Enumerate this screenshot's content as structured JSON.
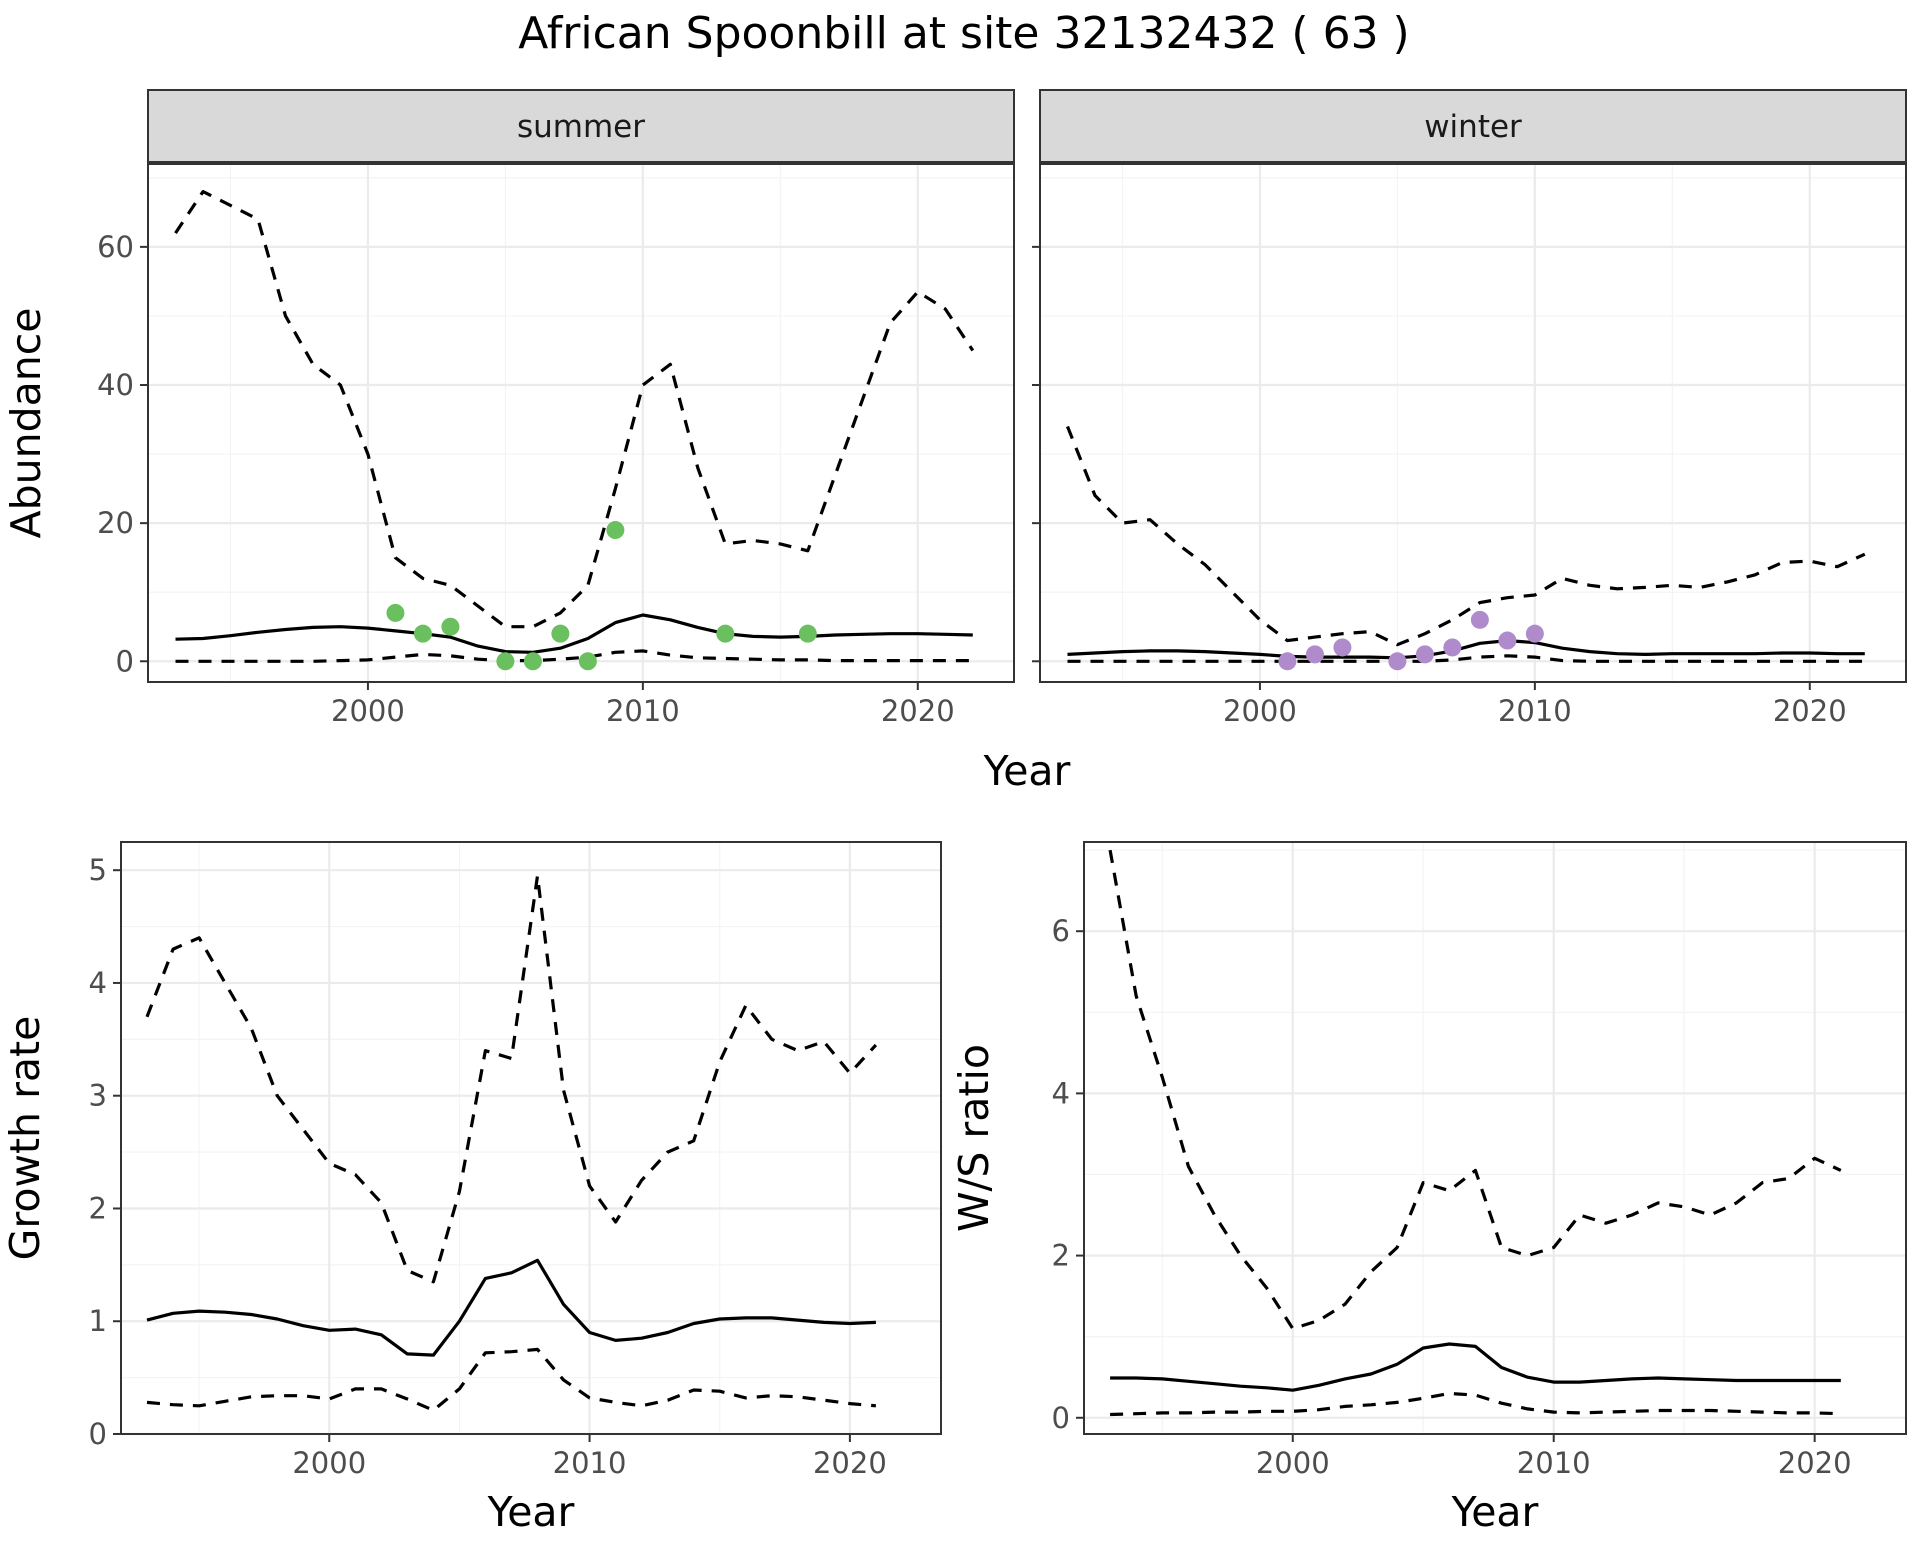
{
  "title": "African Spoonbill at site 32132432 ( 63 )",
  "colors": {
    "summer_points": "#6abf5e",
    "winter_points": "#b08bcc",
    "lines": "#000000"
  },
  "chart_data": [
    {
      "id": "abundance_summer",
      "type": "line",
      "strip": "summer",
      "xlabel": "",
      "ylabel": "Abundance",
      "xlim": [
        1992,
        2023.5
      ],
      "ylim": [
        -3,
        72
      ],
      "xticks": [
        2000,
        2010,
        2020
      ],
      "yticks": [
        0,
        20,
        40,
        60
      ],
      "x": [
        1993,
        1994,
        1995,
        1996,
        1997,
        1998,
        1999,
        2000,
        2001,
        2002,
        2003,
        2004,
        2005,
        2006,
        2007,
        2008,
        2009,
        2010,
        2011,
        2012,
        2013,
        2014,
        2015,
        2016,
        2017,
        2018,
        2019,
        2020,
        2021,
        2022
      ],
      "mean": [
        3.2,
        3.3,
        3.7,
        4.2,
        4.6,
        4.9,
        5.0,
        4.8,
        4.4,
        4.0,
        3.5,
        2.2,
        1.4,
        1.3,
        1.9,
        3.3,
        5.6,
        6.7,
        6.0,
        4.9,
        4.0,
        3.6,
        3.5,
        3.6,
        3.8,
        3.9,
        4.0,
        4.0,
        3.9,
        3.8
      ],
      "upper": [
        62,
        68,
        66,
        64,
        50,
        43,
        40,
        30,
        15,
        12,
        11,
        8,
        5,
        5,
        7,
        11,
        25,
        40,
        43,
        28,
        17,
        17.5,
        17,
        16,
        27,
        38,
        49,
        53.5,
        51,
        45
      ],
      "lower": [
        0,
        0,
        0,
        0,
        0,
        0,
        0.1,
        0.2,
        0.6,
        1.0,
        0.8,
        0.3,
        0.1,
        0.1,
        0.3,
        0.6,
        1.3,
        1.5,
        0.9,
        0.5,
        0.4,
        0.3,
        0.2,
        0.2,
        0.1,
        0.1,
        0.1,
        0.1,
        0.1,
        0.1
      ],
      "points": {
        "x": [
          2001,
          2002,
          2003,
          2005,
          2006,
          2007,
          2008,
          2009,
          2013,
          2016
        ],
        "y": [
          7,
          4,
          5,
          0,
          0,
          4,
          0,
          19,
          4,
          4
        ]
      }
    },
    {
      "id": "abundance_winter",
      "type": "line",
      "strip": "winter",
      "xlabel": "",
      "ylabel": "",
      "xlim": [
        1992,
        2023.5
      ],
      "ylim": [
        -3,
        72
      ],
      "xticks": [
        2000,
        2010,
        2020
      ],
      "yticks": [
        0,
        20,
        40,
        60
      ],
      "x": [
        1993,
        1994,
        1995,
        1996,
        1997,
        1998,
        1999,
        2000,
        2001,
        2002,
        2003,
        2004,
        2005,
        2006,
        2007,
        2008,
        2009,
        2010,
        2011,
        2012,
        2013,
        2014,
        2015,
        2016,
        2017,
        2018,
        2019,
        2020,
        2021,
        2022
      ],
      "mean": [
        1.0,
        1.2,
        1.4,
        1.5,
        1.5,
        1.4,
        1.2,
        1.0,
        0.7,
        0.6,
        0.6,
        0.6,
        0.5,
        0.8,
        1.5,
        2.6,
        3.0,
        2.7,
        1.9,
        1.4,
        1.1,
        1.0,
        1.1,
        1.1,
        1.1,
        1.1,
        1.2,
        1.2,
        1.1,
        1.1
      ],
      "upper": [
        34,
        24,
        20,
        20.5,
        17,
        14,
        10,
        6,
        3,
        3.5,
        4,
        4.3,
        2.4,
        4,
        6,
        8.5,
        9.2,
        9.6,
        12,
        11,
        10.5,
        10.7,
        11,
        10.7,
        11.5,
        12.5,
        14.3,
        14.5,
        13.7,
        15.5
      ],
      "lower": [
        0,
        0,
        0,
        0,
        0,
        0,
        0,
        0,
        0,
        0,
        0,
        0,
        0,
        0,
        0.2,
        0.6,
        0.8,
        0.6,
        0.1,
        0,
        0,
        0,
        0,
        0,
        0,
        0,
        0,
        0,
        0,
        0
      ],
      "points": {
        "x": [
          2001,
          2002,
          2003,
          2005,
          2006,
          2007,
          2008,
          2009,
          2010
        ],
        "y": [
          0,
          1,
          2,
          0,
          1,
          2,
          6,
          3,
          4
        ]
      }
    },
    {
      "id": "growth_rate",
      "type": "line",
      "xlabel": "Year",
      "ylabel": "Growth rate",
      "xlim": [
        1992,
        2023.5
      ],
      "ylim": [
        0,
        5.25
      ],
      "xticks": [
        2000,
        2010,
        2020
      ],
      "yticks": [
        0,
        1,
        2,
        3,
        4,
        5
      ],
      "x": [
        1993,
        1994,
        1995,
        1996,
        1997,
        1998,
        1999,
        2000,
        2001,
        2002,
        2003,
        2004,
        2005,
        2006,
        2007,
        2008,
        2009,
        2010,
        2011,
        2012,
        2013,
        2014,
        2015,
        2016,
        2017,
        2018,
        2019,
        2020,
        2021
      ],
      "mean": [
        1.01,
        1.07,
        1.09,
        1.08,
        1.06,
        1.02,
        0.96,
        0.92,
        0.93,
        0.88,
        0.71,
        0.7,
        1.0,
        1.38,
        1.43,
        1.54,
        1.15,
        0.9,
        0.83,
        0.85,
        0.9,
        0.98,
        1.02,
        1.03,
        1.03,
        1.01,
        0.99,
        0.98,
        0.99
      ],
      "upper": [
        3.7,
        4.3,
        4.4,
        4.0,
        3.6,
        3.0,
        2.7,
        2.4,
        2.3,
        2.05,
        1.45,
        1.35,
        2.15,
        3.4,
        3.33,
        4.95,
        3.05,
        2.2,
        1.88,
        2.25,
        2.5,
        2.6,
        3.3,
        3.8,
        3.5,
        3.4,
        3.48,
        3.2,
        3.45
      ],
      "lower": [
        0.28,
        0.26,
        0.25,
        0.29,
        0.33,
        0.34,
        0.34,
        0.31,
        0.4,
        0.4,
        0.31,
        0.21,
        0.4,
        0.72,
        0.73,
        0.75,
        0.48,
        0.32,
        0.28,
        0.25,
        0.3,
        0.39,
        0.38,
        0.32,
        0.34,
        0.33,
        0.3,
        0.27,
        0.25
      ]
    },
    {
      "id": "ws_ratio",
      "type": "line",
      "xlabel": "Year",
      "ylabel": "W/S ratio",
      "xlim": [
        1992,
        2023.5
      ],
      "ylim": [
        -0.2,
        7.1
      ],
      "xticks": [
        2000,
        2010,
        2020
      ],
      "yticks": [
        0,
        2,
        4,
        6
      ],
      "x": [
        1993,
        1994,
        1995,
        1996,
        1997,
        1998,
        1999,
        2000,
        2001,
        2002,
        2003,
        2004,
        2005,
        2006,
        2007,
        2008,
        2009,
        2010,
        2011,
        2012,
        2013,
        2014,
        2015,
        2016,
        2017,
        2018,
        2019,
        2020,
        2021
      ],
      "mean": [
        0.49,
        0.49,
        0.48,
        0.45,
        0.42,
        0.39,
        0.37,
        0.34,
        0.4,
        0.48,
        0.54,
        0.66,
        0.86,
        0.91,
        0.88,
        0.62,
        0.5,
        0.44,
        0.44,
        0.46,
        0.48,
        0.49,
        0.48,
        0.47,
        0.46,
        0.46,
        0.46,
        0.46,
        0.46
      ],
      "upper": [
        7.0,
        5.2,
        4.2,
        3.1,
        2.5,
        2.0,
        1.6,
        1.1,
        1.2,
        1.4,
        1.8,
        2.1,
        2.9,
        2.8,
        3.05,
        2.1,
        2.0,
        2.1,
        2.5,
        2.4,
        2.5,
        2.65,
        2.6,
        2.5,
        2.65,
        2.9,
        2.95,
        3.2,
        3.05
      ],
      "lower": [
        0.04,
        0.05,
        0.06,
        0.06,
        0.07,
        0.07,
        0.08,
        0.08,
        0.1,
        0.14,
        0.16,
        0.19,
        0.24,
        0.3,
        0.28,
        0.18,
        0.11,
        0.07,
        0.06,
        0.07,
        0.08,
        0.09,
        0.09,
        0.09,
        0.08,
        0.07,
        0.06,
        0.06,
        0.05
      ]
    }
  ]
}
